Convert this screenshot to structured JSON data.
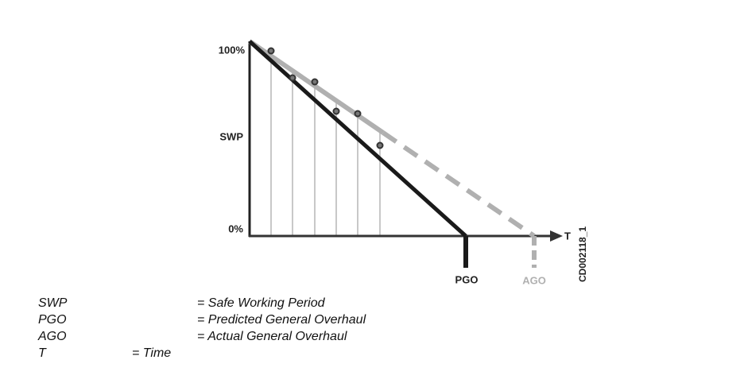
{
  "diagram": {
    "y_top_label": "100%",
    "y_mid_label": "SWP",
    "y_bottom_label": "0%",
    "x_axis_label": "T",
    "pgo_label": "PGO",
    "ago_label": "AGO",
    "figure_id": "CD002118_1"
  },
  "legend": [
    {
      "term": "SWP",
      "definition": "= Safe Working Period"
    },
    {
      "term": "PGO",
      "definition": "= Predicted General Overhaul"
    },
    {
      "term": "AGO",
      "definition": "= Actual General Overhaul"
    },
    {
      "term": "T",
      "definition": "= Time"
    }
  ]
}
